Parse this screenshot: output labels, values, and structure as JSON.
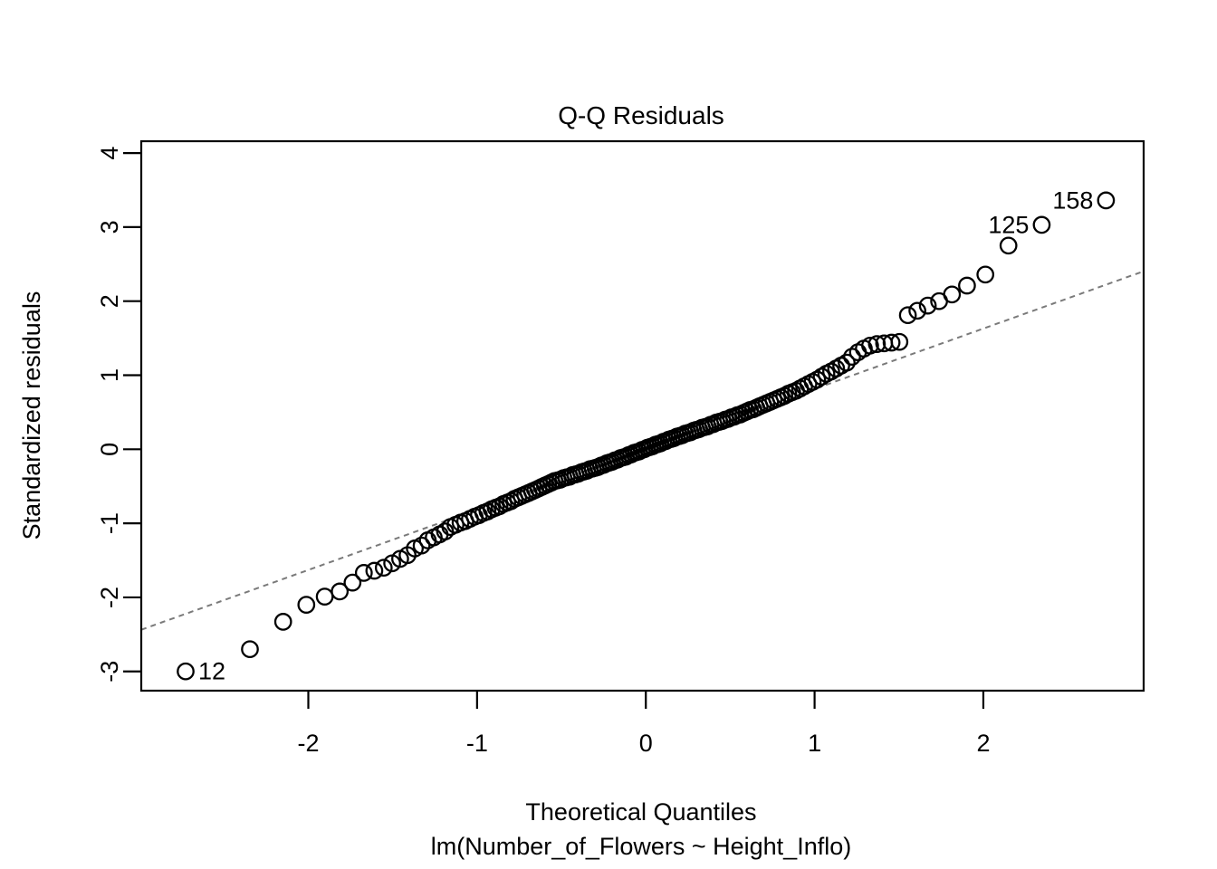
{
  "chart_data": {
    "type": "scatter",
    "title": "Q-Q Residuals",
    "xlabel": "Theoretical Quantiles",
    "model_label": "lm(Number_of_Flowers ~ Height_Inflo)",
    "ylabel": "Standardized residuals",
    "xlim": [
      -2.99,
      2.95
    ],
    "ylim": [
      -3.26,
      4.16
    ],
    "x_ticks": [
      -2,
      -1,
      0,
      1,
      2
    ],
    "y_ticks": [
      -3,
      -2,
      -1,
      0,
      1,
      2,
      3,
      4
    ],
    "grid": false,
    "legend": "none",
    "marker": {
      "shape": "open-circle",
      "color": "#000000"
    },
    "colors": {
      "points": "#000000",
      "reference_line": "#7a7a7a",
      "text": "#000000",
      "background": "#ffffff"
    },
    "reference_line": {
      "style": "dashed",
      "slope": 0.815,
      "intercept": 0
    },
    "labeled_points": [
      {
        "label": "12",
        "x": -2.727,
        "y": -3.0,
        "side": "right"
      },
      {
        "label": "125",
        "x": 2.346,
        "y": 3.03,
        "side": "left"
      },
      {
        "label": "158",
        "x": 2.727,
        "y": 3.36,
        "side": "left"
      }
    ],
    "points": [
      [
        -2.727,
        -3.0
      ],
      [
        -2.346,
        -2.7
      ],
      [
        -2.149,
        -2.33
      ],
      [
        -2.012,
        -2.1
      ],
      [
        -1.903,
        -1.99
      ],
      [
        -1.814,
        -1.92
      ],
      [
        -1.738,
        -1.8
      ],
      [
        -1.671,
        -1.67
      ],
      [
        -1.609,
        -1.64
      ],
      [
        -1.553,
        -1.6
      ],
      [
        -1.503,
        -1.54
      ],
      [
        -1.456,
        -1.48
      ],
      [
        -1.412,
        -1.43
      ],
      [
        -1.369,
        -1.34
      ],
      [
        -1.329,
        -1.3
      ],
      [
        -1.292,
        -1.23
      ],
      [
        -1.257,
        -1.19
      ],
      [
        -1.222,
        -1.15
      ],
      [
        -1.19,
        -1.11
      ],
      [
        -1.158,
        -1.05
      ],
      [
        -1.128,
        -1.02
      ],
      [
        -1.098,
        -0.99
      ],
      [
        -1.07,
        -0.97
      ],
      [
        -1.042,
        -0.94
      ],
      [
        -1.015,
        -0.91
      ],
      [
        -0.989,
        -0.89
      ],
      [
        -0.963,
        -0.86
      ],
      [
        -0.938,
        -0.84
      ],
      [
        -0.914,
        -0.81
      ],
      [
        -0.89,
        -0.79
      ],
      [
        -0.867,
        -0.77
      ],
      [
        -0.844,
        -0.74
      ],
      [
        -0.821,
        -0.72
      ],
      [
        -0.799,
        -0.7
      ],
      [
        -0.778,
        -0.67
      ],
      [
        -0.757,
        -0.65
      ],
      [
        -0.736,
        -0.63
      ],
      [
        -0.715,
        -0.61
      ],
      [
        -0.695,
        -0.59
      ],
      [
        -0.674,
        -0.57
      ],
      [
        -0.655,
        -0.55
      ],
      [
        -0.636,
        -0.53
      ],
      [
        -0.617,
        -0.51
      ],
      [
        -0.598,
        -0.49
      ],
      [
        -0.579,
        -0.47
      ],
      [
        -0.56,
        -0.45
      ],
      [
        -0.542,
        -0.43
      ],
      [
        -0.524,
        -0.42
      ],
      [
        -0.506,
        -0.41
      ],
      [
        -0.488,
        -0.39
      ],
      [
        -0.47,
        -0.38
      ],
      [
        -0.452,
        -0.37
      ],
      [
        -0.435,
        -0.35
      ],
      [
        -0.417,
        -0.34
      ],
      [
        -0.4,
        -0.33
      ],
      [
        -0.383,
        -0.31
      ],
      [
        -0.366,
        -0.3
      ],
      [
        -0.349,
        -0.29
      ],
      [
        -0.332,
        -0.27
      ],
      [
        -0.315,
        -0.26
      ],
      [
        -0.298,
        -0.25
      ],
      [
        -0.282,
        -0.24
      ],
      [
        -0.265,
        -0.22
      ],
      [
        -0.249,
        -0.21
      ],
      [
        -0.232,
        -0.19
      ],
      [
        -0.216,
        -0.18
      ],
      [
        -0.2,
        -0.17
      ],
      [
        -0.184,
        -0.15
      ],
      [
        -0.167,
        -0.14
      ],
      [
        -0.151,
        -0.12
      ],
      [
        -0.135,
        -0.11
      ],
      [
        -0.119,
        -0.1
      ],
      [
        -0.103,
        -0.08
      ],
      [
        -0.087,
        -0.07
      ],
      [
        -0.071,
        -0.05
      ],
      [
        -0.056,
        -0.04
      ],
      [
        -0.04,
        -0.03
      ],
      [
        -0.024,
        -0.01
      ],
      [
        -0.008,
        0.0
      ],
      [
        0.008,
        0.02
      ],
      [
        0.024,
        0.03
      ],
      [
        0.04,
        0.04
      ],
      [
        0.056,
        0.06
      ],
      [
        0.071,
        0.07
      ],
      [
        0.087,
        0.08
      ],
      [
        0.103,
        0.1
      ],
      [
        0.119,
        0.11
      ],
      [
        0.135,
        0.13
      ],
      [
        0.151,
        0.14
      ],
      [
        0.167,
        0.15
      ],
      [
        0.184,
        0.17
      ],
      [
        0.2,
        0.18
      ],
      [
        0.216,
        0.19
      ],
      [
        0.232,
        0.21
      ],
      [
        0.249,
        0.22
      ],
      [
        0.265,
        0.23
      ],
      [
        0.282,
        0.25
      ],
      [
        0.298,
        0.26
      ],
      [
        0.315,
        0.27
      ],
      [
        0.332,
        0.29
      ],
      [
        0.349,
        0.3
      ],
      [
        0.366,
        0.31
      ],
      [
        0.383,
        0.33
      ],
      [
        0.4,
        0.34
      ],
      [
        0.417,
        0.36
      ],
      [
        0.435,
        0.37
      ],
      [
        0.452,
        0.38
      ],
      [
        0.47,
        0.4
      ],
      [
        0.488,
        0.41
      ],
      [
        0.506,
        0.43
      ],
      [
        0.524,
        0.44
      ],
      [
        0.542,
        0.46
      ],
      [
        0.56,
        0.47
      ],
      [
        0.579,
        0.49
      ],
      [
        0.598,
        0.51
      ],
      [
        0.617,
        0.53
      ],
      [
        0.636,
        0.54
      ],
      [
        0.655,
        0.56
      ],
      [
        0.674,
        0.58
      ],
      [
        0.695,
        0.6
      ],
      [
        0.715,
        0.62
      ],
      [
        0.736,
        0.64
      ],
      [
        0.757,
        0.66
      ],
      [
        0.778,
        0.68
      ],
      [
        0.799,
        0.7
      ],
      [
        0.821,
        0.72
      ],
      [
        0.844,
        0.75
      ],
      [
        0.867,
        0.77
      ],
      [
        0.89,
        0.79
      ],
      [
        0.914,
        0.82
      ],
      [
        0.938,
        0.85
      ],
      [
        0.963,
        0.88
      ],
      [
        0.989,
        0.91
      ],
      [
        1.015,
        0.94
      ],
      [
        1.042,
        0.98
      ],
      [
        1.07,
        1.02
      ],
      [
        1.098,
        1.05
      ],
      [
        1.128,
        1.09
      ],
      [
        1.158,
        1.13
      ],
      [
        1.19,
        1.17
      ],
      [
        1.222,
        1.25
      ],
      [
        1.257,
        1.31
      ],
      [
        1.292,
        1.36
      ],
      [
        1.329,
        1.4
      ],
      [
        1.369,
        1.42
      ],
      [
        1.412,
        1.43
      ],
      [
        1.456,
        1.44
      ],
      [
        1.503,
        1.45
      ],
      [
        1.553,
        1.81
      ],
      [
        1.609,
        1.87
      ],
      [
        1.671,
        1.94
      ],
      [
        1.738,
        2.0
      ],
      [
        1.814,
        2.09
      ],
      [
        1.903,
        2.21
      ],
      [
        2.012,
        2.36
      ],
      [
        2.149,
        2.75
      ],
      [
        2.346,
        3.03
      ],
      [
        2.727,
        3.36
      ]
    ]
  }
}
